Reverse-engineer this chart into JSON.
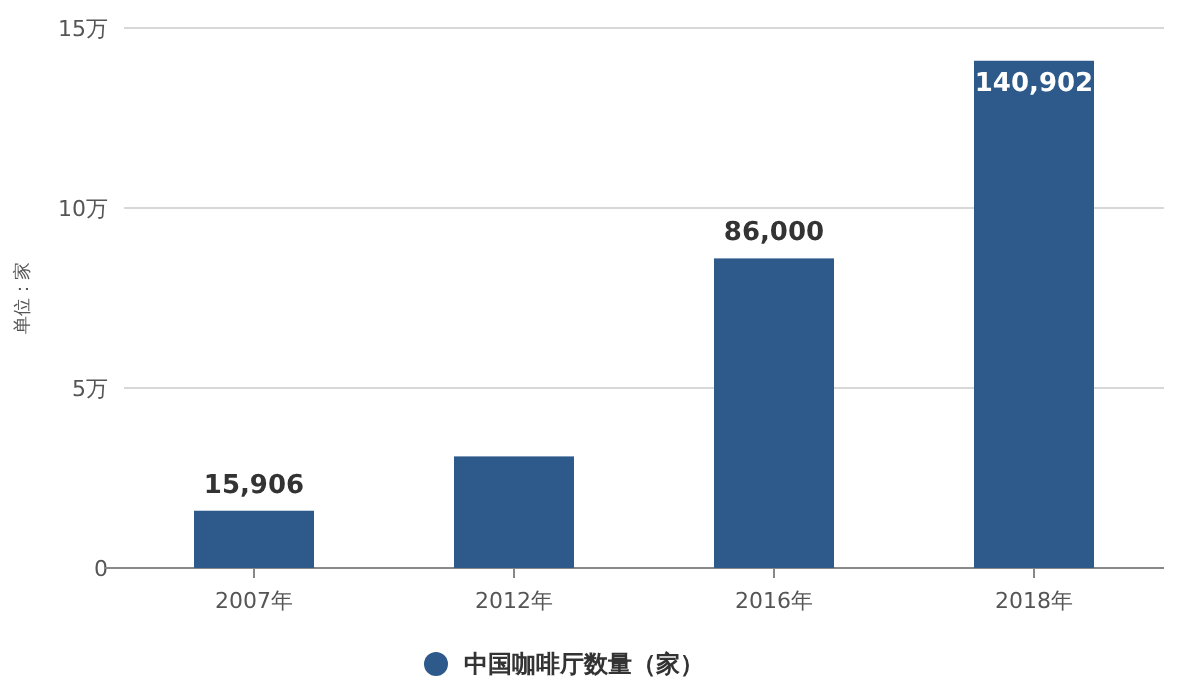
{
  "chart_data": {
    "type": "bar",
    "ylabel": "单位：家",
    "categories": [
      "2007年",
      "2012年",
      "2016年",
      "2018年"
    ],
    "series": [
      {
        "name": "中国咖啡厅数量（家）",
        "color": "#2d5a8a",
        "values": [
          1.5906,
          3.1,
          8.6,
          14.0902
        ]
      }
    ],
    "value_labels": [
      "15,906",
      null,
      "86,000",
      "140,902"
    ],
    "ylim": [
      0,
      15
    ],
    "yticks": [
      0,
      {
        "value": 5,
        "label": "5万"
      },
      {
        "value": 10,
        "label": "10万"
      },
      {
        "value": 15,
        "label": "15万"
      }
    ],
    "grid": "y",
    "legend": "bottom",
    "marker": "circle"
  }
}
